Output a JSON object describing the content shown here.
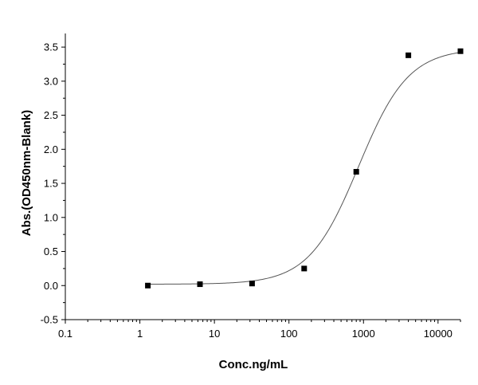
{
  "chart_data": {
    "type": "scatter",
    "title": "",
    "xlabel": "Conc.ng/mL",
    "ylabel": "Abs.(OD450nm-Blank)",
    "x_scale": "log",
    "xlim": [
      0.1,
      20000
    ],
    "ylim": [
      -0.5,
      3.7
    ],
    "x_ticks": [
      0.1,
      1,
      10,
      100,
      1000,
      10000
    ],
    "x_tick_labels": [
      "0.1",
      "1",
      "10",
      "100",
      "1000",
      "10000"
    ],
    "y_ticks": [
      -0.5,
      0.0,
      0.5,
      1.0,
      1.5,
      2.0,
      2.5,
      3.0,
      3.5
    ],
    "y_tick_labels": [
      "-0.5",
      "0.0",
      "0.5",
      "1.0",
      "1.5",
      "2.0",
      "2.5",
      "3.0",
      "3.5"
    ],
    "grid": false,
    "legend": "none",
    "colors": {
      "points": "#000000",
      "curve": "#555555",
      "axes": "#000000"
    },
    "series": [
      {
        "kind": "points",
        "x": [
          1.28,
          6.4,
          32,
          160,
          800,
          4000,
          20000
        ],
        "y": [
          0.0,
          0.02,
          0.03,
          0.25,
          1.67,
          3.38,
          3.44
        ]
      },
      {
        "kind": "fit-curve",
        "bottom": 0.02,
        "top": 3.48,
        "ec50": 860,
        "hill": 1.3
      }
    ]
  }
}
